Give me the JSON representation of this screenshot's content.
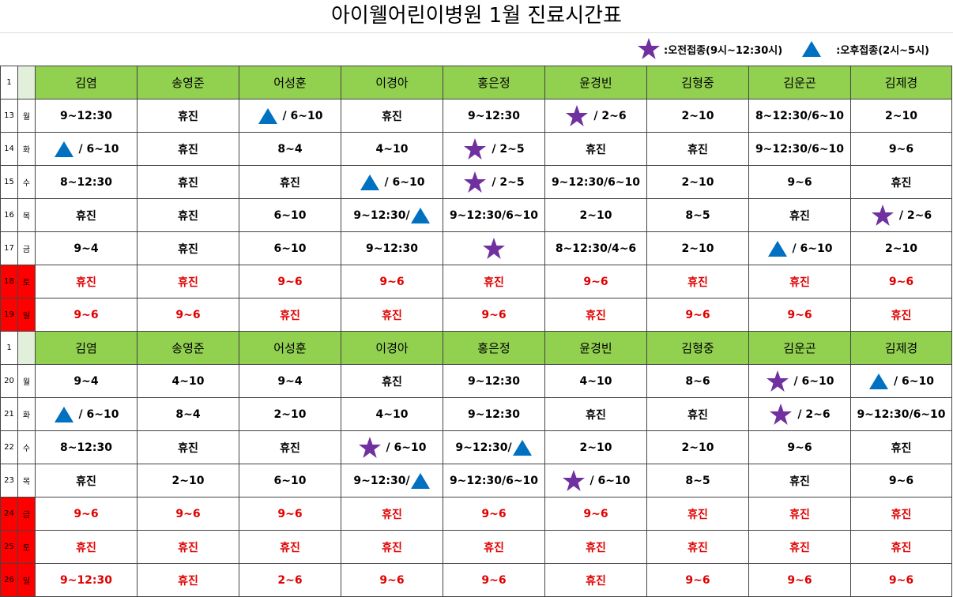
{
  "header": {
    "title": "아이웰어린이병원 1월 진료시간표"
  },
  "legend": [
    {
      "icon": "star",
      "label": ":오전접종(9시~12:30시)"
    },
    {
      "icon": "triangle",
      "label": ":오후접종(2시~5시)"
    }
  ],
  "table": {
    "rows": [
      {
        "num": "1",
        "header": true,
        "cells": [
          "김염",
          "송영준",
          "어성훈",
          "이경아",
          "홍은정",
          "윤경빈",
          "김형중",
          "김운곤",
          "김제경"
        ]
      },
      {
        "num": "13",
        "day": "월",
        "cells": [
          "9~12:30",
          "휴진",
          {
            "icon": "triangle",
            "text": "/ 6~10"
          },
          "휴진",
          "9~12:30",
          {
            "icon": "star",
            "text": "/ 2~6"
          },
          "2~10",
          "8~12:30/6~10",
          "2~10"
        ]
      },
      {
        "num": "14",
        "day": "화",
        "cells": [
          {
            "icon": "triangle",
            "text": "/ 6~10"
          },
          "휴진",
          "8~4",
          "4~10",
          {
            "icon": "star",
            "text": "/ 2~5"
          },
          "휴진",
          "휴진",
          "9~12:30/6~10",
          "9~6"
        ]
      },
      {
        "num": "15",
        "day": "수",
        "cells": [
          "8~12:30",
          "휴진",
          "휴진",
          {
            "icon": "triangle",
            "text": "/ 6~10"
          },
          {
            "icon": "star",
            "text": "/ 2~5"
          },
          "9~12:30/6~10",
          "2~10",
          "9~6",
          "휴진"
        ]
      },
      {
        "num": "16",
        "day": "목",
        "cells": [
          "휴진",
          "휴진",
          "6~10",
          {
            "text": "9~12:30/",
            "icon_after": "triangle"
          },
          "9~12:30/6~10",
          "2~10",
          "8~5",
          "휴진",
          {
            "icon": "star",
            "text": "/ 2~6"
          }
        ]
      },
      {
        "num": "17",
        "day": "금",
        "cells": [
          "9~4",
          "휴진",
          "6~10",
          "9~12:30",
          {
            "icon": "star"
          },
          "8~12:30/4~6",
          "2~10",
          {
            "icon": "triangle",
            "text": "/ 6~10"
          },
          "2~10"
        ]
      },
      {
        "num": "18",
        "day": "토",
        "weekend": true,
        "cells": [
          "휴진",
          "휴진",
          "9~6",
          "9~6",
          "휴진",
          "9~6",
          "휴진",
          "휴진",
          "9~6"
        ]
      },
      {
        "num": "19",
        "day": "일",
        "weekend": true,
        "cells": [
          "9~6",
          "9~6",
          "휴진",
          "휴진",
          "9~6",
          "휴진",
          "9~6",
          "9~6",
          "휴진"
        ]
      },
      {
        "num": "1",
        "header": true,
        "cells": [
          "김염",
          "송영준",
          "어성훈",
          "이경아",
          "홍은정",
          "윤경빈",
          "김형중",
          "김운곤",
          "김제경"
        ]
      },
      {
        "num": "20",
        "day": "월",
        "cells": [
          "9~4",
          "4~10",
          "9~4",
          "휴진",
          "9~12:30",
          "4~10",
          "8~6",
          {
            "icon": "star",
            "text": "/ 6~10"
          },
          {
            "icon": "triangle",
            "text": "/ 6~10"
          }
        ]
      },
      {
        "num": "21",
        "day": "화",
        "cells": [
          {
            "icon": "triangle",
            "text": "/ 6~10"
          },
          "8~4",
          "2~10",
          "4~10",
          "9~12:30",
          "휴진",
          "휴진",
          {
            "icon": "star",
            "text": "/ 2~6"
          },
          "9~12:30/6~10"
        ]
      },
      {
        "num": "22",
        "day": "수",
        "cells": [
          "8~12:30",
          "휴진",
          "휴진",
          {
            "icon": "star",
            "text": "/ 6~10"
          },
          {
            "text": "9~12:30/",
            "icon_after": "triangle"
          },
          "2~10",
          "2~10",
          "9~6",
          "휴진"
        ]
      },
      {
        "num": "23",
        "day": "목",
        "cells": [
          "휴진",
          "2~10",
          "6~10",
          {
            "text": "9~12:30/",
            "icon_after": "triangle"
          },
          "9~12:30/6~10",
          {
            "icon": "star",
            "text": "/ 6~10"
          },
          "8~5",
          "휴진",
          "9~6"
        ]
      },
      {
        "num": "24",
        "day": "금",
        "weekend": true,
        "cells": [
          "9~6",
          "9~6",
          "9~6",
          "휴진",
          "9~6",
          "9~6",
          "휴진",
          "휴진",
          "휴진"
        ]
      },
      {
        "num": "25",
        "day": "토",
        "weekend": true,
        "cells": [
          "휴진",
          "휴진",
          "휴진",
          "휴진",
          "휴진",
          "휴진",
          "휴진",
          "휴진",
          "휴진"
        ]
      },
      {
        "num": "26",
        "day": "일",
        "weekend": true,
        "cells": [
          "9~12:30",
          "휴진",
          "2~6",
          "9~6",
          "9~6",
          "휴진",
          "9~6",
          "9~6",
          "9~6"
        ]
      }
    ]
  }
}
